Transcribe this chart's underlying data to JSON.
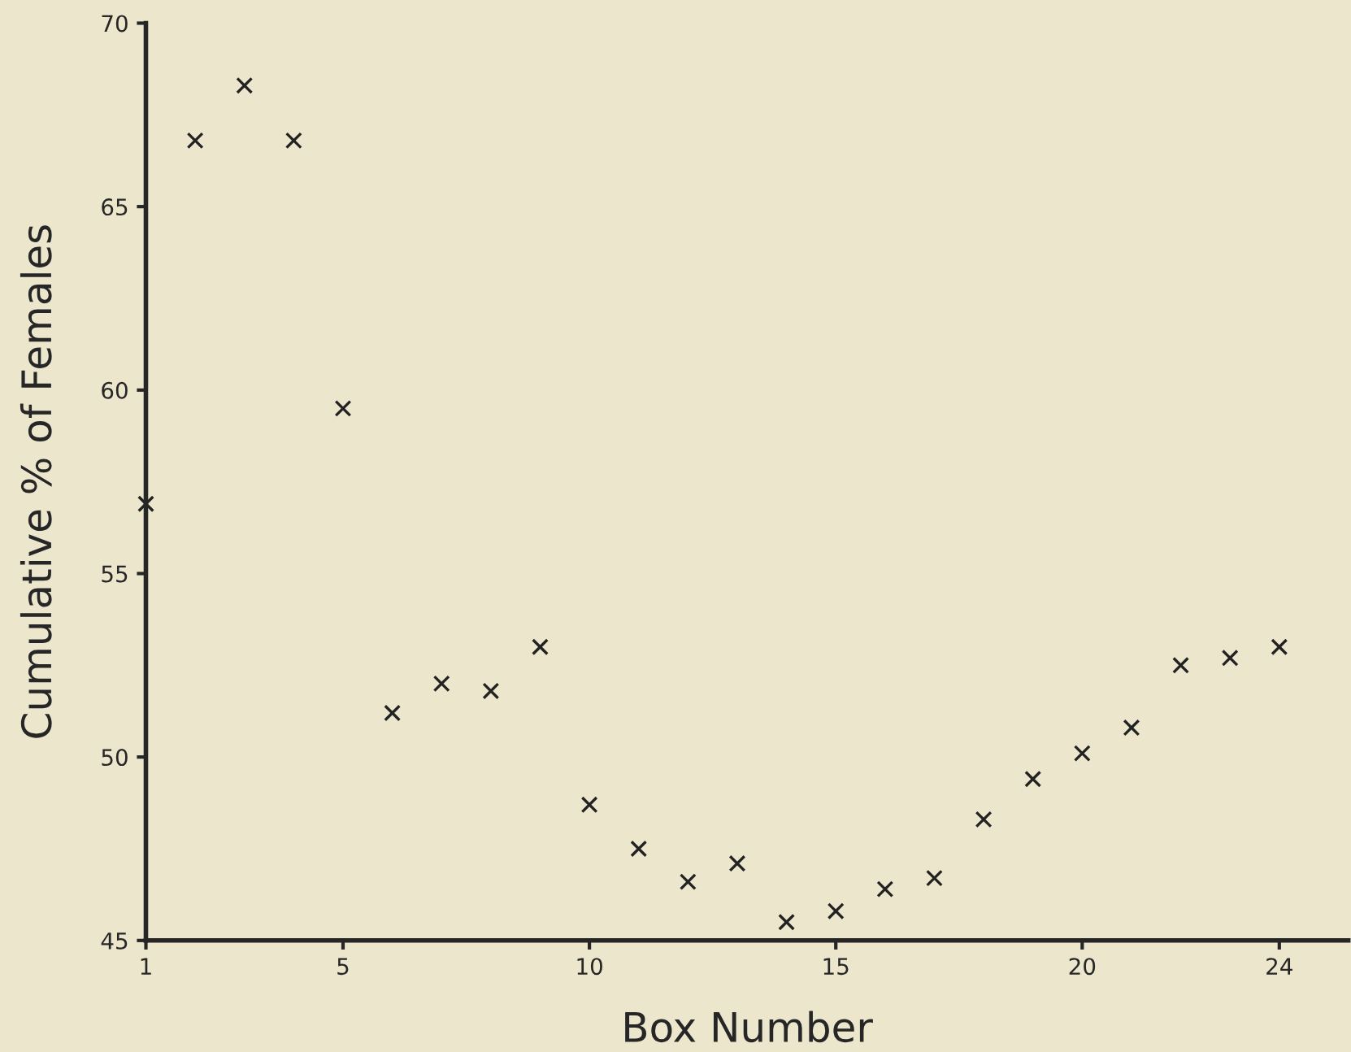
{
  "chart_data": {
    "type": "scatter",
    "xlabel": "Box Number",
    "ylabel": "Cumulative % of Females",
    "x": [
      1,
      2,
      3,
      4,
      5,
      6,
      7,
      8,
      9,
      10,
      11,
      12,
      13,
      14,
      15,
      16,
      17,
      18,
      19,
      20,
      21,
      22,
      23,
      24
    ],
    "series": [
      {
        "color": "#222222",
        "values": [
          56.9,
          66.8,
          68.3,
          66.8,
          59.5,
          51.2,
          52.0,
          51.8,
          53.0,
          48.7,
          47.5,
          46.6,
          47.1,
          45.5,
          45.8,
          46.4,
          46.7,
          48.3,
          49.4,
          50.1,
          50.8,
          52.5,
          52.7,
          53.0
        ]
      }
    ],
    "xlim": [
      1,
      25.4
    ],
    "xticks": [
      1,
      5,
      10,
      15,
      20,
      24
    ],
    "ylim": [
      45,
      70
    ],
    "yticks": [
      45,
      50,
      55,
      60,
      65,
      70
    ],
    "grid": false,
    "marker": "cross"
  }
}
